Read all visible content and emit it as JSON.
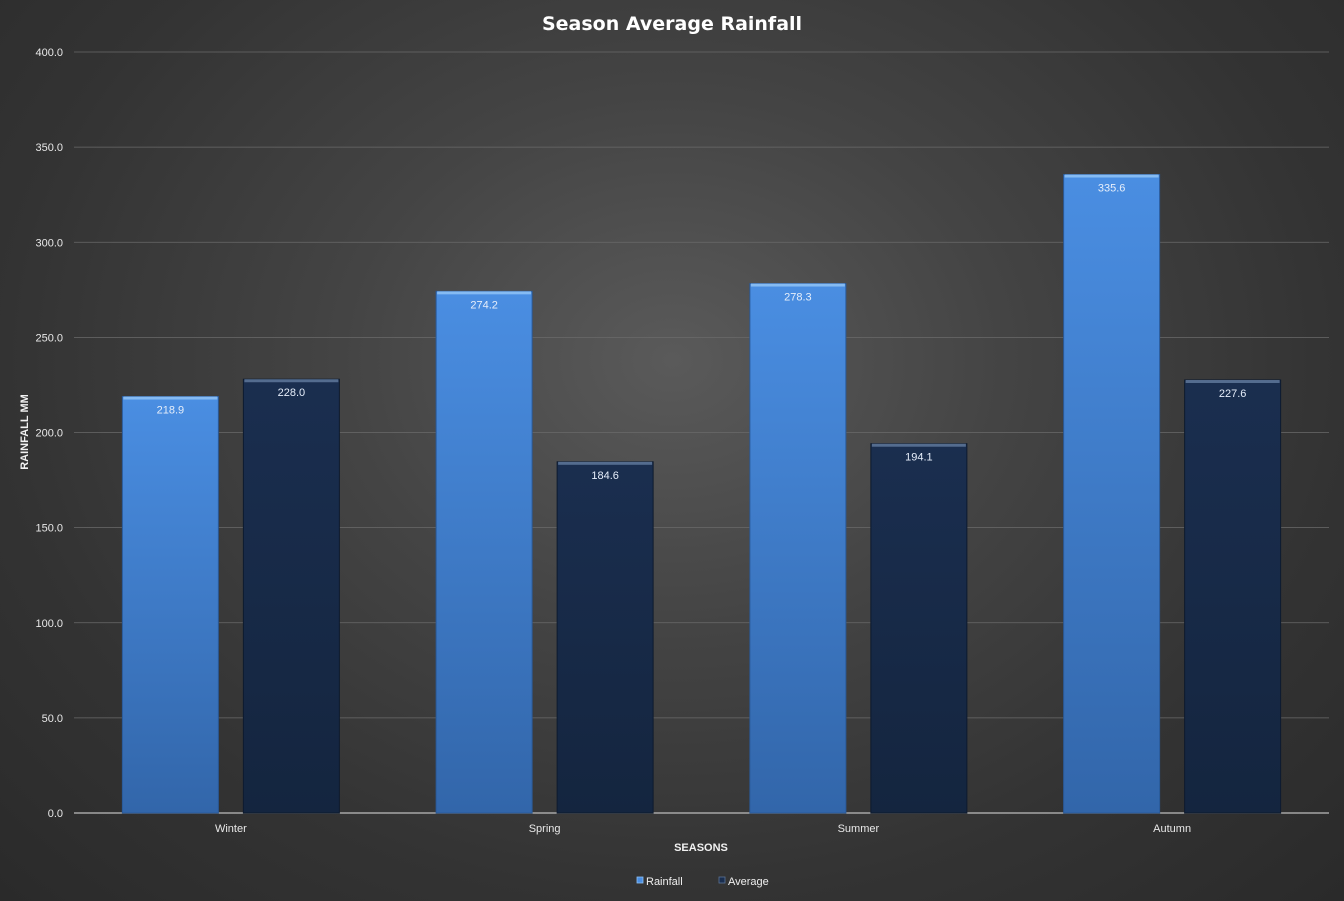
{
  "chart_data": {
    "type": "bar",
    "title": "Season Average Rainfall",
    "xlabel": "SEASONS",
    "ylabel": "RAINFALL MM",
    "categories": [
      "Winter",
      "Spring",
      "Summer",
      "Autumn"
    ],
    "series": [
      {
        "name": "Rainfall",
        "values": [
          218.9,
          274.2,
          278.3,
          335.6
        ],
        "labels": [
          "218.9",
          "274.2",
          "278.3",
          "335.6"
        ],
        "color": "#3e7fd3"
      },
      {
        "name": "Average",
        "values": [
          228.0,
          184.6,
          194.1,
          227.6
        ],
        "labels": [
          "228.0",
          "184.6",
          "194.1",
          "227.6"
        ],
        "color": "#172a48"
      }
    ],
    "ylim": [
      0,
      400
    ],
    "yticks": [
      "0.0",
      "50.0",
      "100.0",
      "150.0",
      "200.0",
      "250.0",
      "300.0",
      "350.0",
      "400.0"
    ],
    "grid": true,
    "legend_position": "bottom"
  }
}
